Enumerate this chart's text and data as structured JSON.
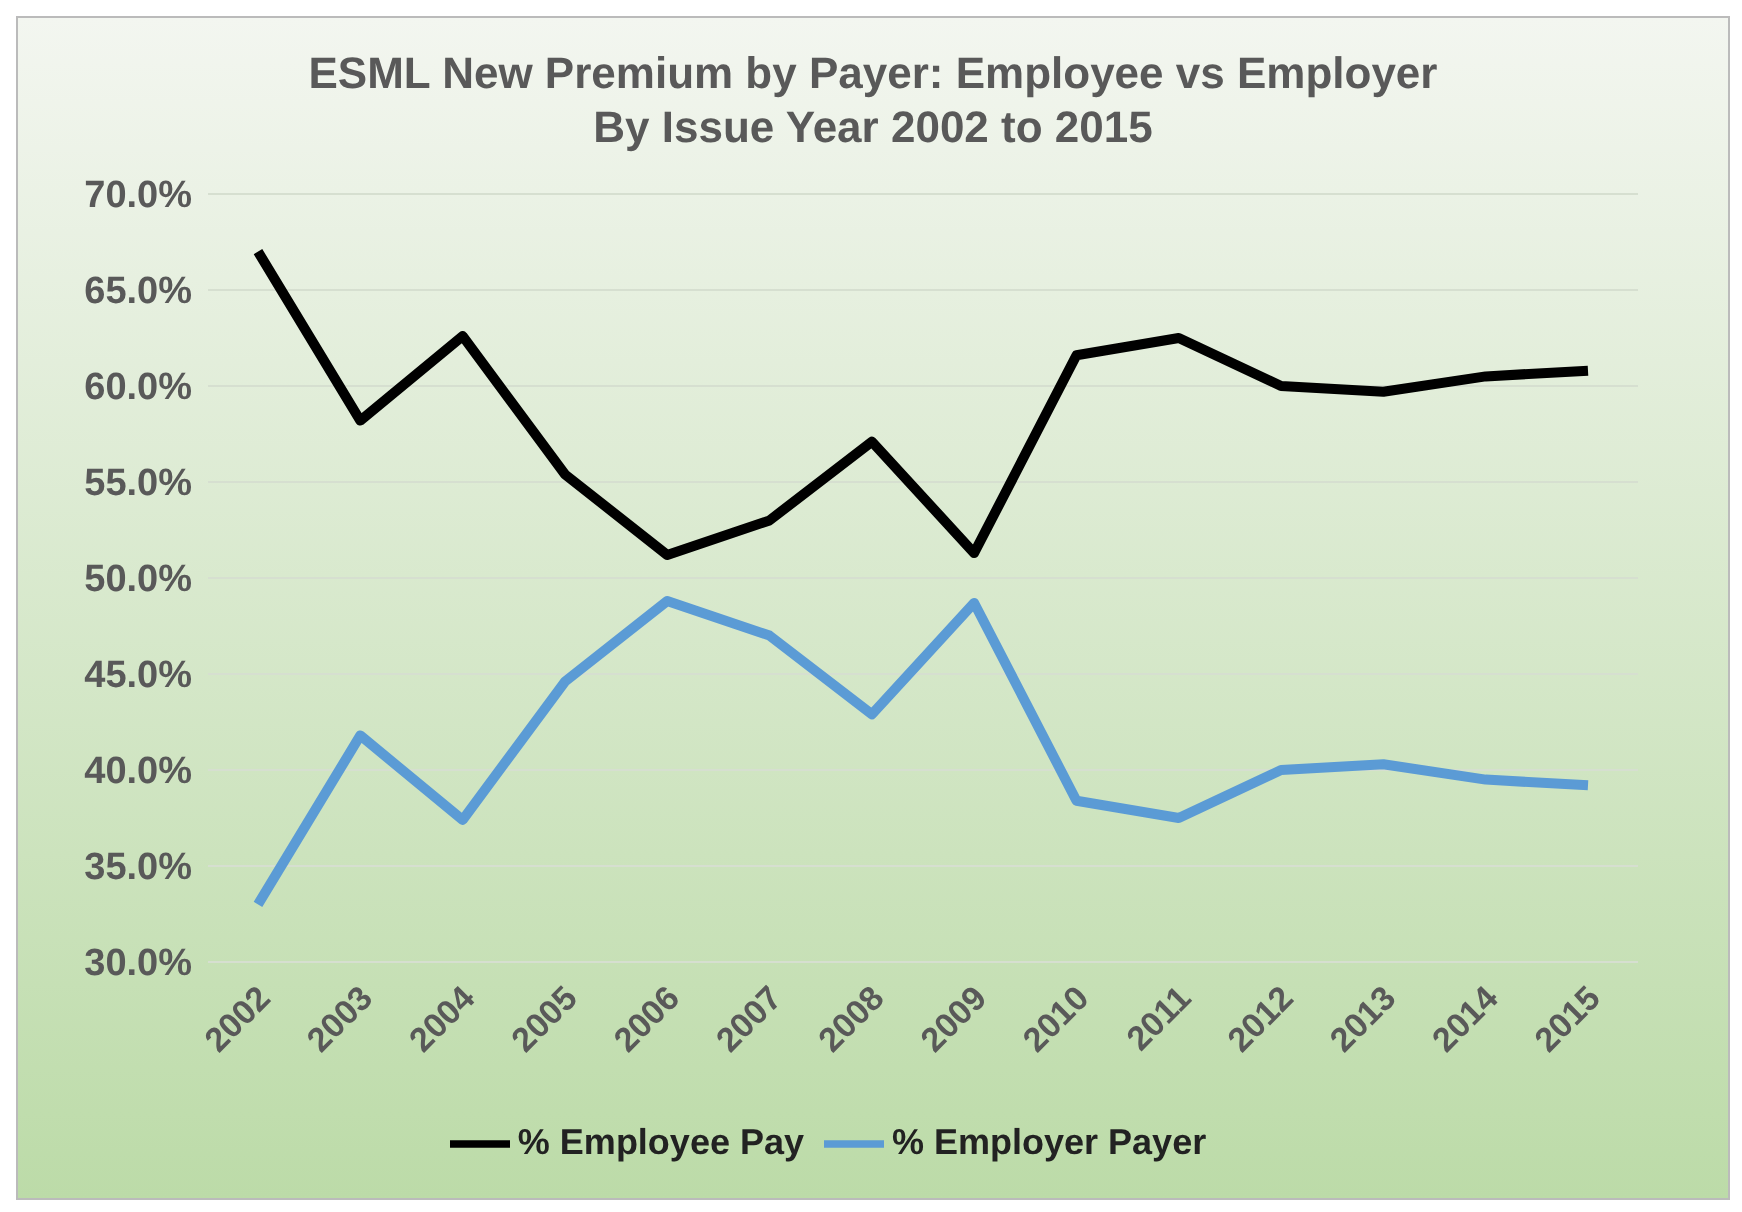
{
  "chart_data": {
    "type": "line",
    "title": "ESML New Premium by Payer:  Employee vs Employer\nBy Issue Year 2002 to 2015",
    "categories": [
      "2002",
      "2003",
      "2004",
      "2005",
      "2006",
      "2007",
      "2008",
      "2009",
      "2010",
      "2011",
      "2012",
      "2013",
      "2014",
      "2015"
    ],
    "series": [
      {
        "name": "% Employee Pay",
        "color": "#000000",
        "values": [
          67.0,
          58.2,
          62.6,
          55.4,
          51.2,
          53.0,
          57.1,
          51.3,
          61.6,
          62.5,
          60.0,
          59.7,
          60.5,
          60.8
        ]
      },
      {
        "name": "% Employer Payer",
        "color": "#5b9bd5",
        "values": [
          33.0,
          41.8,
          37.4,
          44.6,
          48.8,
          47.0,
          42.9,
          48.7,
          38.4,
          37.5,
          40.0,
          40.3,
          39.5,
          39.2
        ]
      }
    ],
    "ylim": [
      30,
      70
    ],
    "yticks": [
      {
        "value": 30,
        "label": "30.0%"
      },
      {
        "value": 35,
        "label": "35.0%"
      },
      {
        "value": 40,
        "label": "40.0%"
      },
      {
        "value": 45,
        "label": "45.0%"
      },
      {
        "value": 50,
        "label": "50.0%"
      },
      {
        "value": 55,
        "label": "55.0%"
      },
      {
        "value": 60,
        "label": "60.0%"
      },
      {
        "value": 65,
        "label": "65.0%"
      },
      {
        "value": 70,
        "label": "70.0%"
      }
    ],
    "grid": "y",
    "legend": "bottom",
    "marker": "none",
    "line_style": "solid"
  }
}
